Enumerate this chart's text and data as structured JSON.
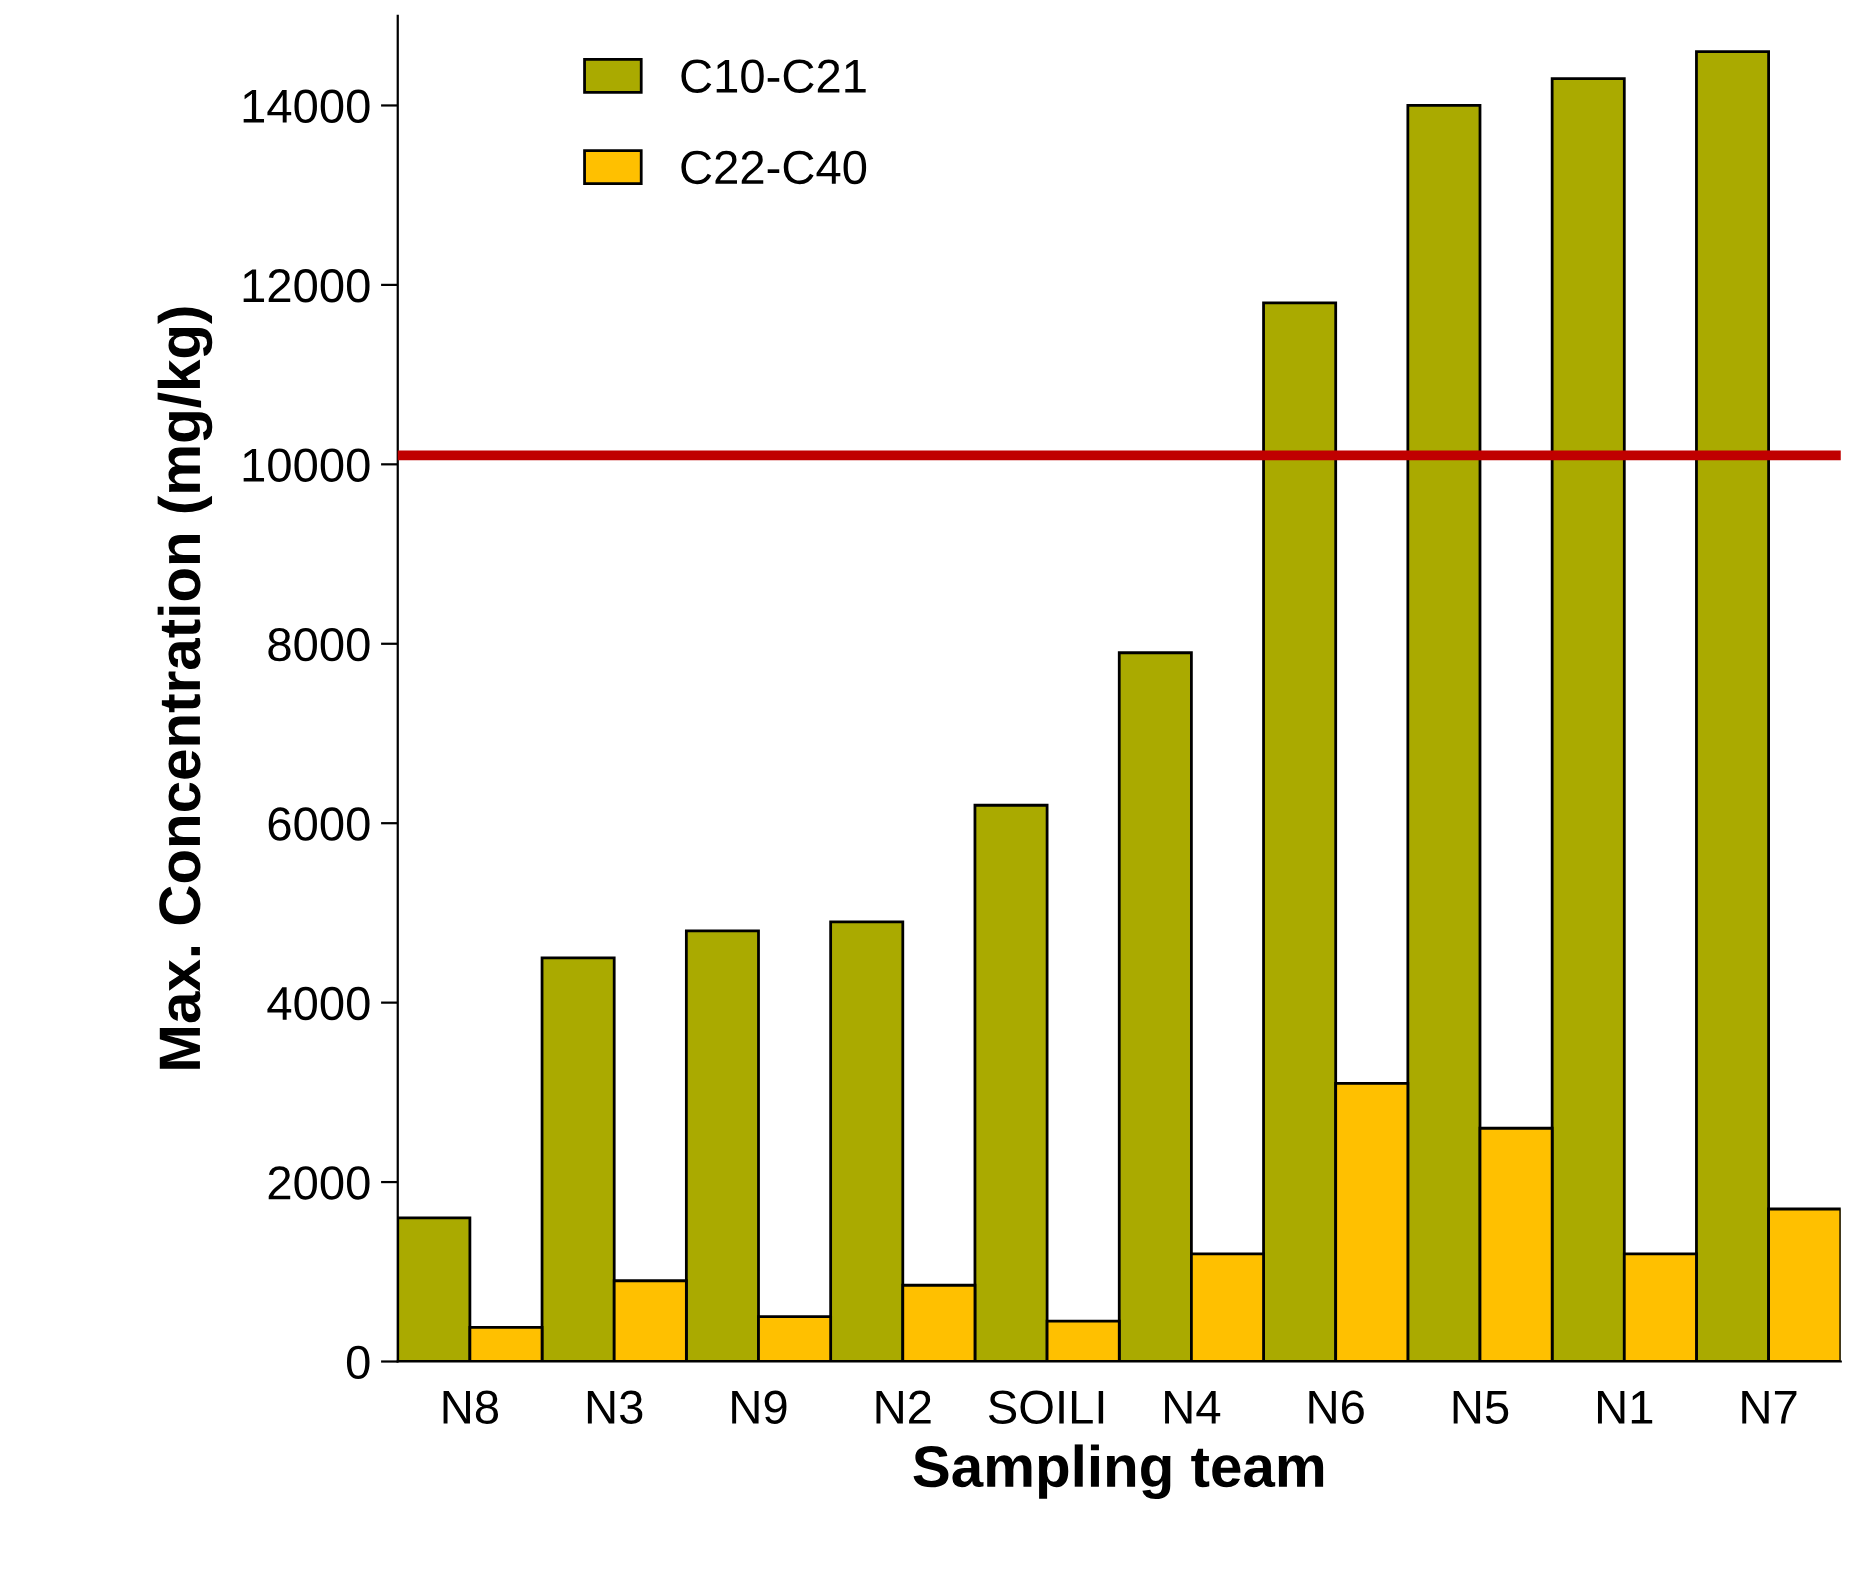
{
  "chart_data": {
    "type": "bar",
    "xlabel": "Sampling team",
    "ylabel": "Max. Concentration (mg/kg)",
    "categories": [
      "N8",
      "N3",
      "N9",
      "N2",
      "SOILI",
      "N4",
      "N6",
      "N5",
      "N1",
      "N7"
    ],
    "series": [
      {
        "name": "C10-C21",
        "color": "#aaaa00",
        "values": [
          1600,
          4500,
          4800,
          4900,
          6200,
          7900,
          11800,
          14000,
          14300,
          14600
        ]
      },
      {
        "name": "C22-C40",
        "color": "#ffc000",
        "values": [
          380,
          900,
          500,
          850,
          450,
          1200,
          3100,
          2600,
          1200,
          1700
        ]
      }
    ],
    "ylim": [
      0,
      15000
    ],
    "yticks": [
      0,
      2000,
      4000,
      6000,
      8000,
      10000,
      12000,
      14000
    ],
    "ref_lines": [
      {
        "axis": "y",
        "value": 10100,
        "color": "#c00000",
        "line_style": "solid"
      }
    ],
    "grid": false,
    "legend": "top left"
  }
}
